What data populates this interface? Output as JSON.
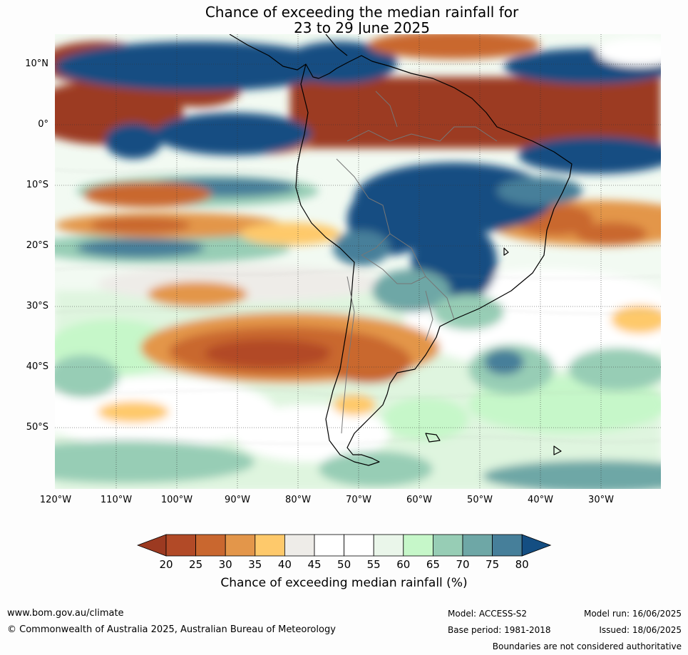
{
  "title_line1": "Chance of exceeding the median rainfall for",
  "title_line2": "23 to 29 June 2025",
  "lat_labels": [
    "10°N",
    "0°",
    "10°S",
    "20°S",
    "30°S",
    "40°S",
    "50°S"
  ],
  "lon_labels": [
    "120°W",
    "110°W",
    "100°W",
    "90°W",
    "80°W",
    "70°W",
    "60°W",
    "50°W",
    "40°W",
    "30°W"
  ],
  "colorbar": {
    "ticks": [
      "20",
      "25",
      "30",
      "35",
      "40",
      "45",
      "50",
      "55",
      "60",
      "65",
      "70",
      "75",
      "80"
    ],
    "colors": [
      "#9c3a21",
      "#b24a27",
      "#c9672f",
      "#e3964a",
      "#fec96b",
      "#eeece8",
      "#ffffff",
      "#ffffff",
      "#eaf6ea",
      "#c6f7c9",
      "#97cdb5",
      "#6ea7a6",
      "#467f9a",
      "#144e82"
    ],
    "label": "Chance of exceeding median rainfall (%)"
  },
  "footer": {
    "website": "www.bom.gov.au/climate",
    "copyright": "© Commonwealth of Australia 2025, Australian Bureau of Meteorology",
    "model": "Model: ACCESS-S2",
    "base_period": "Base period: 1981-2018",
    "model_run": "Model run: 16/06/2025",
    "issued": "Issued: 18/06/2025",
    "disclaimer": "Boundaries are not considered authoritative"
  }
}
